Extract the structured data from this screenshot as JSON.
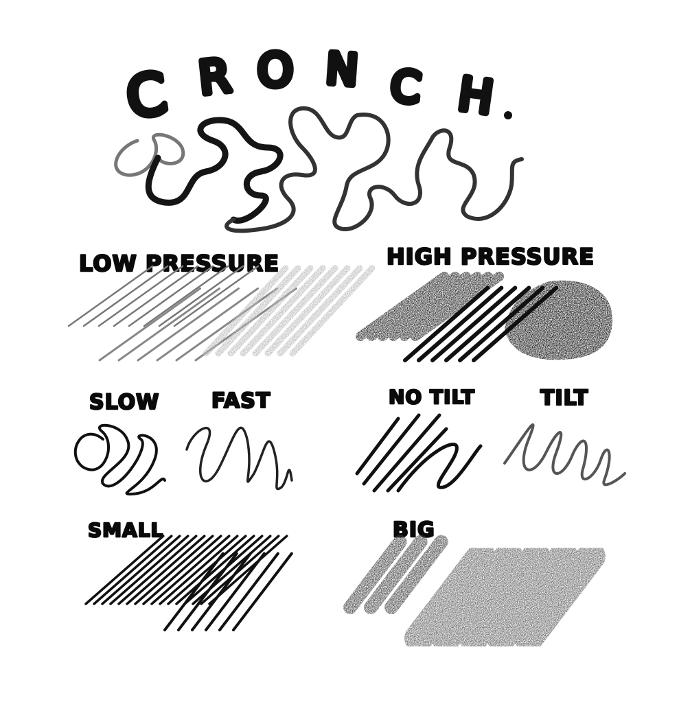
{
  "title": {
    "letters": [
      "C",
      "R",
      "O",
      "N",
      "C",
      "H",
      "."
    ],
    "text": "CRONCH."
  },
  "labels": {
    "low_pressure": "LOW PRESSURE",
    "high_pressure": "HIGH PRESSURE",
    "slow": "SLOW",
    "fast": "FAST",
    "no_tilt": "NO TILT",
    "tilt": "TILT",
    "small": "SMALL",
    "big": "BIG"
  },
  "colors": {
    "ink": "#111111",
    "light_ink": "#8a8a8a",
    "background": "#ffffff"
  }
}
